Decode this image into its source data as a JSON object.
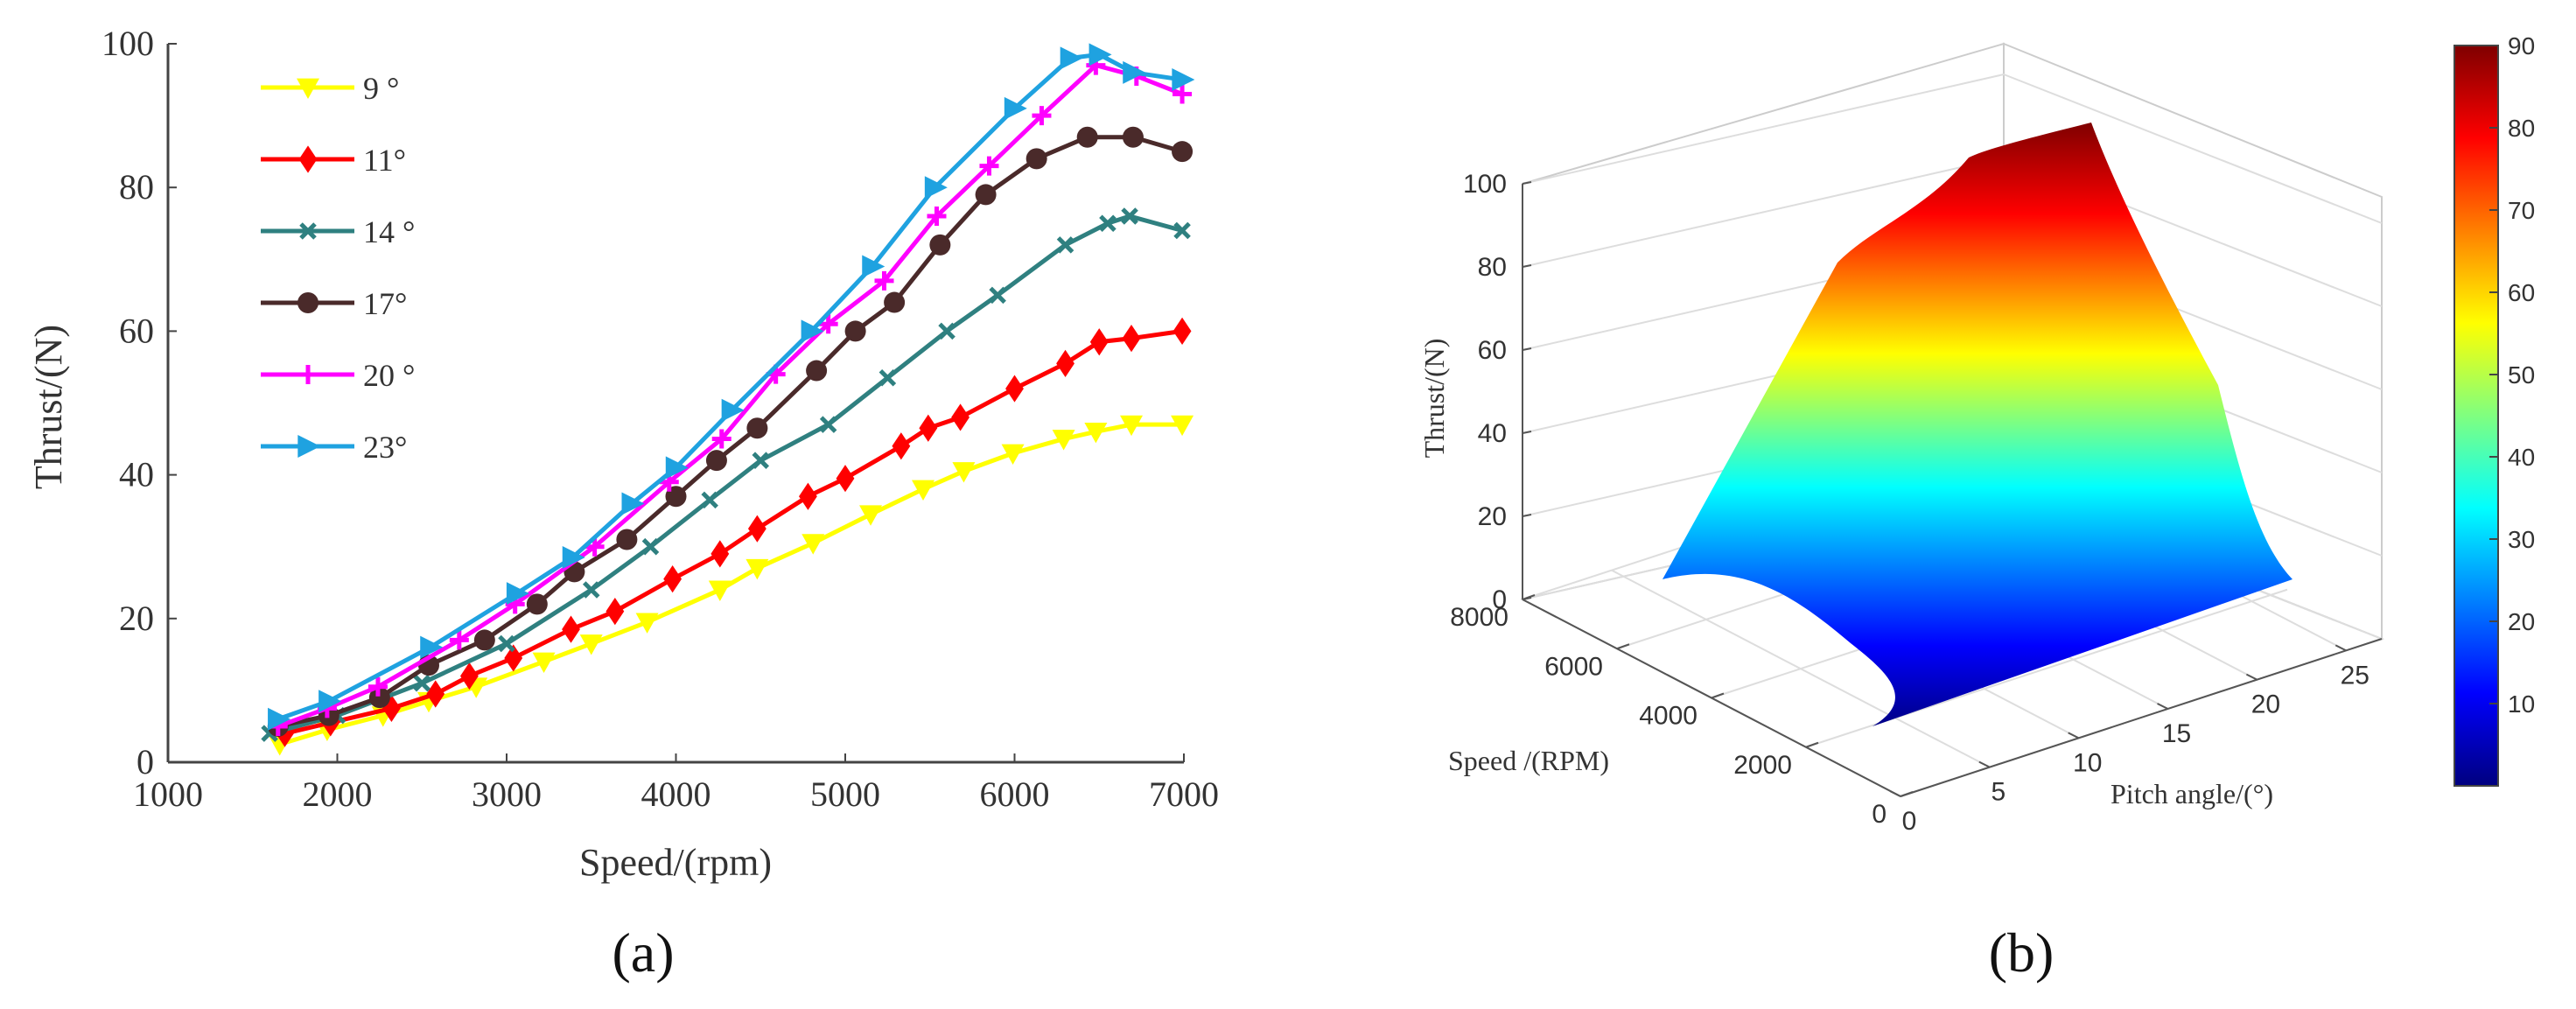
{
  "chart_data": [
    {
      "type": "line",
      "panel_label": "(a)",
      "xlabel": "Speed/(rpm)",
      "ylabel": "Thrust/(N)",
      "xlim": [
        1000,
        7000
      ],
      "ylim": [
        0,
        100
      ],
      "xticks": [
        1000,
        2000,
        3000,
        4000,
        5000,
        6000,
        7000
      ],
      "yticks": [
        0,
        20,
        40,
        60,
        80,
        100
      ],
      "legend_position": "top-left",
      "series": [
        {
          "name": "9 °",
          "color": "#FFFF00",
          "marker": "triangle-down",
          "x": [
            1660,
            1940,
            2270,
            2540,
            2820,
            3220,
            3500,
            3830,
            4260,
            4480,
            4810,
            5150,
            5460,
            5700,
            5990,
            6290,
            6480,
            6690,
            6990
          ],
          "y": [
            2.5,
            4.5,
            6.5,
            8.5,
            10.5,
            14,
            16.5,
            19.5,
            24,
            27,
            30.5,
            34.5,
            38,
            40.5,
            43,
            45,
            46,
            47,
            47
          ]
        },
        {
          "name": "11°",
          "color": "#FF0000",
          "marker": "diamond",
          "x": [
            1690,
            1960,
            2320,
            2580,
            2780,
            3040,
            3380,
            3640,
            3980,
            4260,
            4480,
            4780,
            5000,
            5330,
            5490,
            5680,
            6000,
            6300,
            6500,
            6690,
            6990
          ],
          "y": [
            4,
            5.5,
            7.5,
            9.5,
            12,
            14.5,
            18.5,
            21,
            25.5,
            29,
            32.5,
            37,
            39.5,
            44,
            46.5,
            48,
            52,
            55.5,
            58.5,
            59,
            60
          ]
        },
        {
          "name": "14 °",
          "color": "#2F8080",
          "marker": "x",
          "x": [
            1600,
            2000,
            2500,
            3000,
            3500,
            3850,
            4200,
            4500,
            4900,
            5250,
            5600,
            5900,
            6300,
            6550,
            6680,
            6990
          ],
          "y": [
            4,
            6.5,
            11,
            16.5,
            24,
            30,
            36.5,
            42,
            47,
            53.5,
            60,
            65,
            72,
            75,
            76,
            74
          ]
        },
        {
          "name": "17°",
          "color": "#4A2A2A",
          "marker": "circle",
          "x": [
            1650,
            1950,
            2250,
            2540,
            2870,
            3180,
            3400,
            3710,
            4000,
            4240,
            4480,
            4830,
            5060,
            5290,
            5560,
            5830,
            6130,
            6430,
            6700,
            6990
          ],
          "y": [
            5,
            6.5,
            9,
            13.5,
            17,
            22,
            26.5,
            31,
            37,
            42,
            46.5,
            54.5,
            60,
            64,
            72,
            79,
            84,
            87,
            87,
            85
          ]
        },
        {
          "name": "20 °",
          "color": "#FF00FF",
          "marker": "plus",
          "x": [
            1650,
            1940,
            2240,
            2720,
            3050,
            3520,
            3960,
            4270,
            4590,
            4900,
            5230,
            5540,
            5850,
            6160,
            6480,
            6720,
            6990
          ],
          "y": [
            5,
            7.5,
            10.5,
            17,
            22,
            30,
            39,
            45,
            54,
            61,
            67,
            76,
            83,
            90,
            97,
            95.5,
            93
          ]
        },
        {
          "name": "23°",
          "color": "#1FA2E0",
          "marker": "triangle-right",
          "x": [
            1650,
            1950,
            2550,
            3060,
            3390,
            3740,
            4000,
            4330,
            4800,
            5160,
            5530,
            6000,
            6330,
            6500,
            6700,
            6990
          ],
          "y": [
            6,
            8.5,
            16,
            23.5,
            28.5,
            36,
            41,
            49,
            60,
            69,
            80,
            91,
            98,
            98.5,
            96,
            95
          ]
        }
      ]
    },
    {
      "type": "surface",
      "panel_label": "(b)",
      "xlabel": "Pitch angle/(°)",
      "ylabel": "Speed /(RPM)",
      "zlabel": "Thrust/(N)",
      "xlim": [
        0,
        25
      ],
      "ylim": [
        0,
        8000
      ],
      "zlim": [
        0,
        100
      ],
      "xticks": [
        0,
        5,
        10,
        15,
        20,
        25
      ],
      "yticks": [
        0,
        2000,
        4000,
        6000,
        8000
      ],
      "zticks": [
        0,
        20,
        40,
        60,
        80,
        100
      ],
      "surface_corners": [
        {
          "pitch": 9,
          "speed": 1650,
          "thrust": 3
        },
        {
          "pitch": 23,
          "speed": 1650,
          "thrust": 6
        },
        {
          "pitch": 23,
          "speed": 7000,
          "thrust": 95
        },
        {
          "pitch": 9,
          "speed": 7000,
          "thrust": 47
        }
      ],
      "colormap": "jet",
      "colorbar_ticks": [
        10,
        20,
        30,
        40,
        50,
        60,
        70,
        80,
        90
      ],
      "colorbar_range": [
        0,
        90
      ]
    }
  ]
}
